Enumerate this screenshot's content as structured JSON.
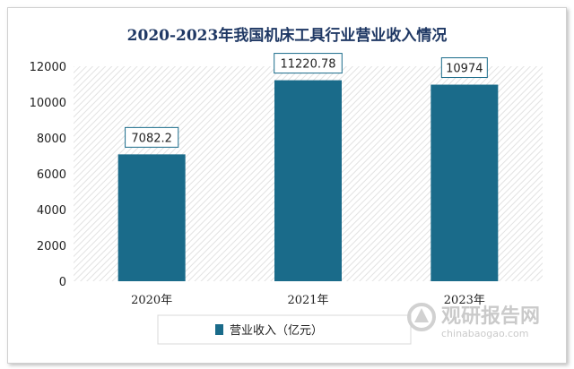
{
  "chart_data": {
    "type": "bar",
    "title": "2020-2023年我国机床工具行业营业收入情况",
    "categories": [
      "2020年",
      "2021年",
      "2023年"
    ],
    "series": [
      {
        "name": "营业收入（亿元）",
        "values": [
          7082.2,
          11220.78,
          10974
        ]
      }
    ],
    "data_labels": [
      "7082.2",
      "11220.78",
      "10974"
    ],
    "yticks": [
      "0",
      "2000",
      "4000",
      "6000",
      "8000",
      "10000",
      "12000"
    ],
    "ylim": [
      0,
      12000
    ],
    "grid": false,
    "plot_background": "diagonal-hatch",
    "legend": "bottom",
    "colors": {
      "bar": "#1a6b8a",
      "title": "#1f3864"
    }
  },
  "watermark": {
    "text_cn": "观研报告网",
    "text_en": "chinabaogao.com"
  }
}
